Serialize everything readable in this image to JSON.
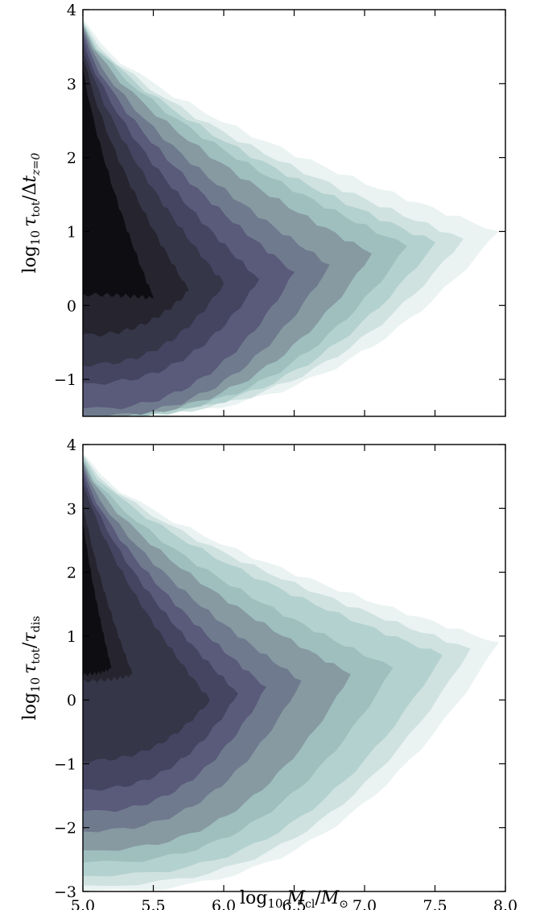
{
  "chart_data": [
    {
      "type": "area",
      "panel": "top",
      "xlim": [
        5.0,
        8.0
      ],
      "ylim": [
        -1.5,
        4.0
      ],
      "x_ticks": [
        5.0,
        5.5,
        6.0,
        6.5,
        7.0,
        7.5,
        8.0
      ],
      "y_ticks": [
        -1,
        0,
        1,
        2,
        3,
        4
      ],
      "x_tick_labels": [
        "",
        "",
        "",
        "",
        "",
        "",
        ""
      ],
      "y_tick_labels": [
        "−1",
        "0",
        "1",
        "2",
        "3",
        "4"
      ],
      "ylabel": "log10 τtot/Δtz=0",
      "xlabel": "",
      "grid": false,
      "contour_levels": [
        {
          "color": "#eaf3f2",
          "x_max": 7.95,
          "y_low": -1.5,
          "y_high": 4.0,
          "peak_y": 1.0
        },
        {
          "color": "#cfe2e0",
          "x_max": 7.7,
          "y_low": -1.5,
          "y_high": 4.0,
          "peak_y": 0.9
        },
        {
          "color": "#b3d1cf",
          "x_max": 7.5,
          "y_low": -1.5,
          "y_high": 4.0,
          "peak_y": 0.85
        },
        {
          "color": "#9fbfbf",
          "x_max": 7.3,
          "y_low": -1.5,
          "y_high": 4.0,
          "peak_y": 0.8
        },
        {
          "color": "#879aa2",
          "x_max": 7.05,
          "y_low": -1.5,
          "y_high": 4.0,
          "peak_y": 0.7
        },
        {
          "color": "#6f7a8e",
          "x_max": 6.75,
          "y_low": -1.5,
          "y_high": 4.0,
          "peak_y": 0.55
        },
        {
          "color": "#5a5a7a",
          "x_max": 6.5,
          "y_low": -1.4,
          "y_high": 4.0,
          "peak_y": 0.45
        },
        {
          "color": "#454562",
          "x_max": 6.25,
          "y_low": -1.05,
          "y_high": 4.0,
          "peak_y": 0.35
        },
        {
          "color": "#363649",
          "x_max": 6.0,
          "y_low": -0.8,
          "y_high": 4.0,
          "peak_y": 0.3
        },
        {
          "color": "#26252f",
          "x_max": 5.75,
          "y_low": -0.4,
          "y_high": 4.0,
          "peak_y": 0.2
        },
        {
          "color": "#0e0d12",
          "x_max": 5.5,
          "y_low": 0.15,
          "y_high": 4.0,
          "peak_y": 0.1
        }
      ]
    },
    {
      "type": "area",
      "panel": "bottom",
      "xlim": [
        5.0,
        8.0
      ],
      "ylim": [
        -3.0,
        4.0
      ],
      "x_ticks": [
        5.0,
        5.5,
        6.0,
        6.5,
        7.0,
        7.5,
        8.0
      ],
      "y_ticks": [
        -3,
        -2,
        -1,
        0,
        1,
        2,
        3,
        4
      ],
      "x_tick_labels": [
        "5.0",
        "5.5",
        "6.0",
        "6.5",
        "7.0",
        "7.5",
        "8.0"
      ],
      "y_tick_labels": [
        "−3",
        "−2",
        "−1",
        "0",
        "1",
        "2",
        "3",
        "4"
      ],
      "ylabel": "log10 τtot/τdis",
      "xlabel": "log10 Mcl/M⊙",
      "grid": false,
      "contour_levels": [
        {
          "color": "#eaf3f2",
          "x_max": 7.95,
          "y_low": -3.0,
          "y_high": 4.0,
          "peak_y": 0.9
        },
        {
          "color": "#cfe2e0",
          "x_max": 7.75,
          "y_low": -2.9,
          "y_high": 4.0,
          "peak_y": 0.8
        },
        {
          "color": "#b3d1cf",
          "x_max": 7.55,
          "y_low": -2.75,
          "y_high": 4.0,
          "peak_y": 0.7
        },
        {
          "color": "#9fbfbf",
          "x_max": 7.2,
          "y_low": -2.55,
          "y_high": 4.0,
          "peak_y": 0.5
        },
        {
          "color": "#879aa2",
          "x_max": 6.9,
          "y_low": -2.35,
          "y_high": 4.0,
          "peak_y": 0.4
        },
        {
          "color": "#6f7a8e",
          "x_max": 6.55,
          "y_low": -2.05,
          "y_high": 4.0,
          "peak_y": 0.3
        },
        {
          "color": "#5a5a7a",
          "x_max": 6.3,
          "y_low": -1.75,
          "y_high": 4.0,
          "peak_y": 0.2
        },
        {
          "color": "#454562",
          "x_max": 6.1,
          "y_low": -1.4,
          "y_high": 4.0,
          "peak_y": 0.1
        },
        {
          "color": "#363649",
          "x_max": 5.9,
          "y_low": -0.95,
          "y_high": 4.0,
          "peak_y": 0.0
        },
        {
          "color": "#26252f",
          "x_max": 5.35,
          "y_low": 0.3,
          "y_high": 4.0,
          "peak_y": 0.4
        },
        {
          "color": "#0e0d12",
          "x_max": 5.2,
          "y_low": 0.4,
          "y_high": 4.0,
          "peak_y": 0.5
        }
      ]
    }
  ]
}
